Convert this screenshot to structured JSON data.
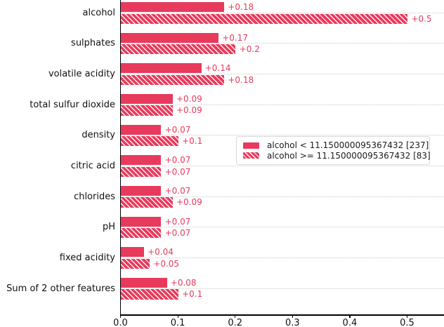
{
  "chart_data": {
    "type": "bar",
    "orientation": "horizontal",
    "title": "",
    "xlabel": "",
    "ylabel": "",
    "categories": [
      "alcohol",
      "sulphates",
      "volatile acidity",
      "total sulfur dioxide",
      "density",
      "citric acid",
      "chlorides",
      "pH",
      "fixed acidity",
      "Sum of 2 other features"
    ],
    "series": [
      {
        "name": "alcohol < 11.150000095367432 [237]",
        "pattern": "solid",
        "values": [
          0.18,
          0.17,
          0.14,
          0.09,
          0.07,
          0.07,
          0.07,
          0.07,
          0.04,
          0.08
        ],
        "value_labels": [
          "+0.18",
          "+0.17",
          "+0.14",
          "+0.09",
          "+0.07",
          "+0.07",
          "+0.07",
          "+0.07",
          "+0.04",
          "+0.08"
        ]
      },
      {
        "name": "alcohol >= 11.150000095367432 [83]",
        "pattern": "hatched",
        "values": [
          0.5,
          0.2,
          0.18,
          0.09,
          0.1,
          0.07,
          0.09,
          0.07,
          0.05,
          0.1
        ],
        "value_labels": [
          "+0.5",
          "+0.2",
          "+0.18",
          "+0.09",
          "+0.1",
          "+0.07",
          "+0.09",
          "+0.07",
          "+0.05",
          "+0.1"
        ]
      }
    ],
    "x_ticks": [
      0.0,
      0.1,
      0.2,
      0.3,
      0.4,
      0.5
    ],
    "x_tick_labels": [
      "0.0",
      "0.1",
      "0.2",
      "0.3",
      "0.4",
      "0.5"
    ],
    "xlim": [
      0,
      0.565
    ],
    "grid": {
      "axis": "y",
      "style": "dotted",
      "color": "#c9c9c9"
    },
    "legend_position": "center right",
    "colors": {
      "bar": "#e83a5c",
      "hatch": "#ffffff",
      "value_label": "#e83a5c",
      "axis": "#000000",
      "text": "#111111",
      "legend_border": "#d9d9d9"
    }
  }
}
